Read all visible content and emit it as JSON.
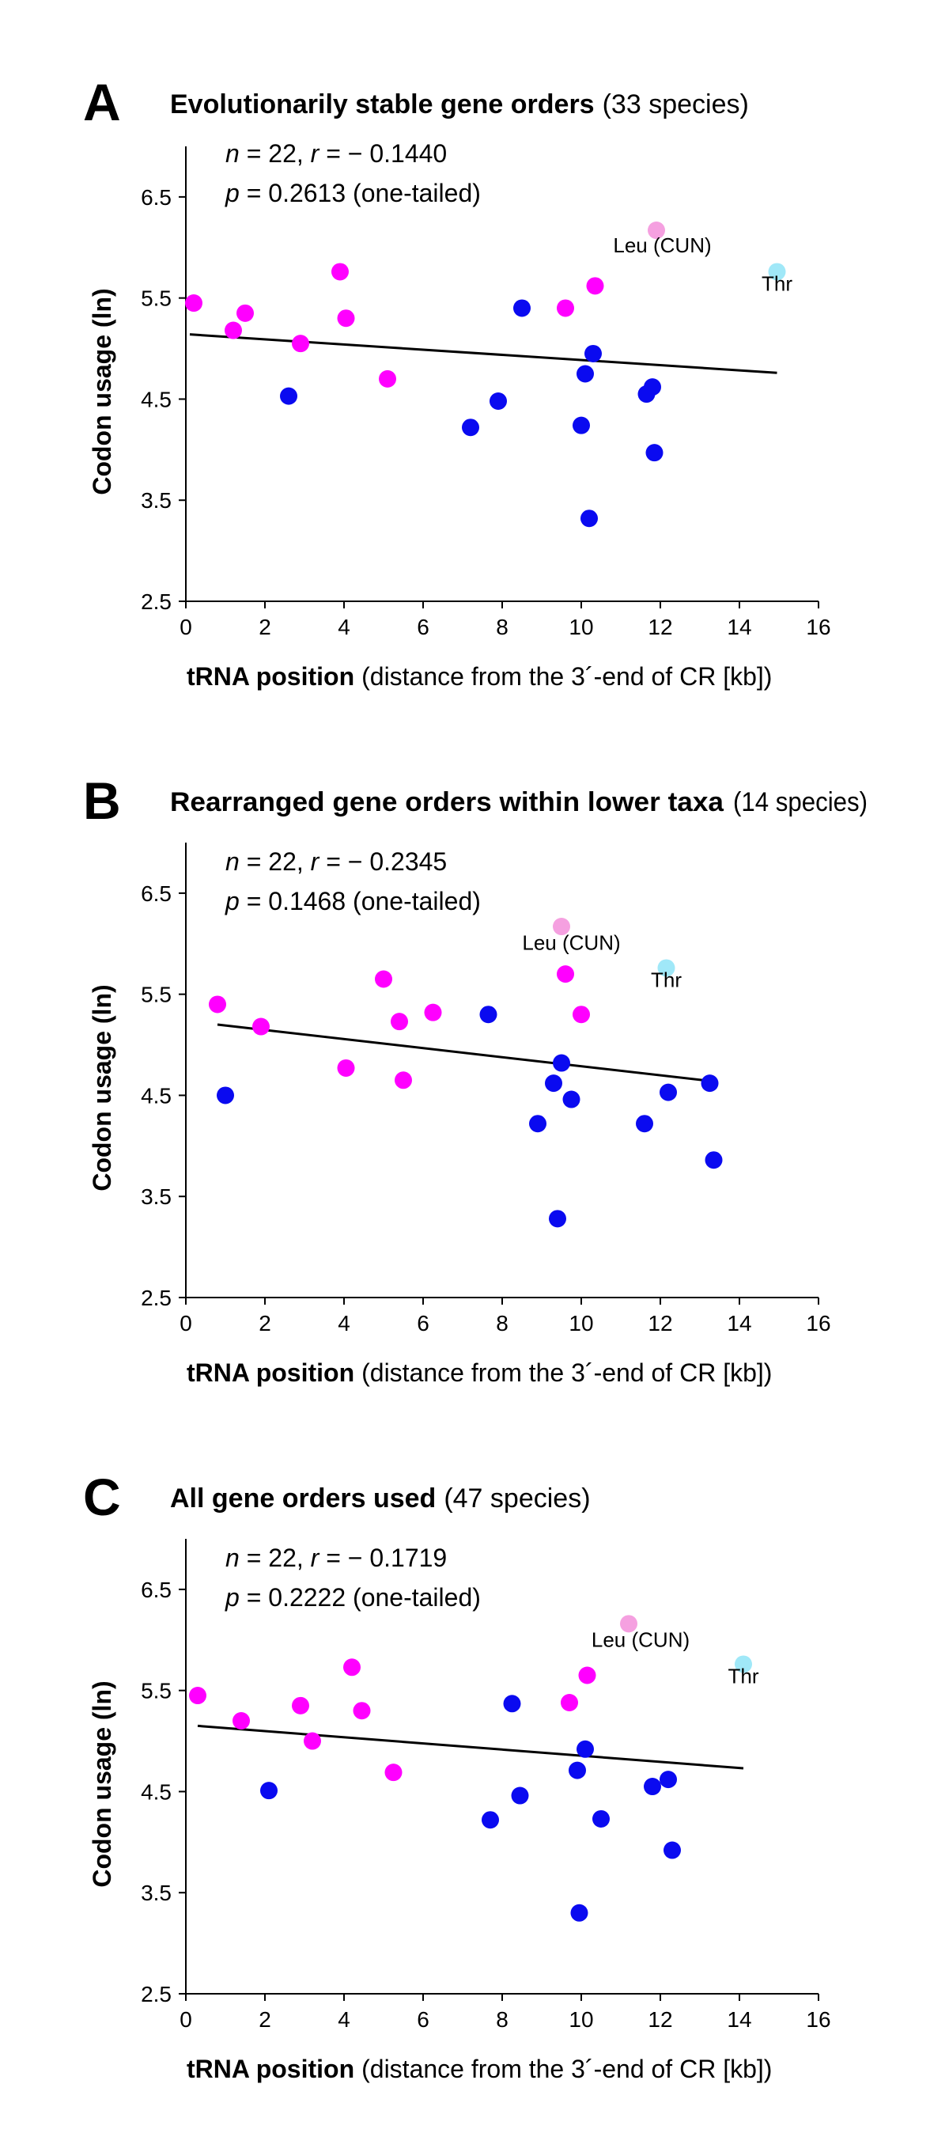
{
  "chart_data": [
    {
      "type": "scatter",
      "panel_label": "A",
      "title_bold": "Evolutionarily stable gene orders",
      "title_extra": "(33 species)",
      "stat_line1": {
        "n_label": "n",
        "n_value": " = 22, ",
        "r_label": "r",
        "r_value": " = − 0.1440"
      },
      "stat_line2": {
        "p_label": "p",
        "p_value": " = 0.2613 (one-tailed)"
      },
      "xlabel_bold": "tRNA position",
      "xlabel_extra": "(distance from the 3´-end of CR [kb])",
      "ylabel": "Codon usage (ln)",
      "xlim": [
        0,
        16
      ],
      "ylim": [
        2.5,
        7.0
      ],
      "xticks": [
        "0",
        "2",
        "4",
        "6",
        "8",
        "10",
        "12",
        "14",
        "16"
      ],
      "yticks": [
        "2.5",
        "3.5",
        "4.5",
        "5.5",
        "6.5"
      ],
      "colors": {
        "magenta": "#ff00ff",
        "blue": "#0a0af0",
        "pink": "#f5a0e0",
        "cyan": "#a0e8f8",
        "line": "#000000"
      },
      "series": [
        {
          "name": "magenta",
          "points": [
            [
              0.2,
              5.45
            ],
            [
              1.2,
              5.18
            ],
            [
              1.5,
              5.35
            ],
            [
              2.9,
              5.05
            ],
            [
              3.9,
              5.76
            ],
            [
              4.05,
              5.3
            ],
            [
              5.1,
              4.7
            ],
            [
              9.6,
              5.4
            ],
            [
              10.35,
              5.62
            ]
          ]
        },
        {
          "name": "blue",
          "points": [
            [
              2.6,
              4.53
            ],
            [
              7.2,
              4.22
            ],
            [
              7.9,
              4.48
            ],
            [
              8.5,
              5.4
            ],
            [
              10.0,
              4.24
            ],
            [
              10.1,
              4.75
            ],
            [
              10.2,
              3.32
            ],
            [
              10.3,
              4.95
            ],
            [
              11.65,
              4.55
            ],
            [
              11.8,
              4.62
            ],
            [
              11.85,
              3.97
            ]
          ]
        },
        {
          "name": "pink",
          "points": [
            [
              11.9,
              6.17
            ]
          ]
        },
        {
          "name": "cyan",
          "points": [
            [
              14.95,
              5.76
            ]
          ]
        }
      ],
      "trend_line": {
        "x": [
          0.1,
          14.95
        ],
        "y": [
          5.14,
          4.76
        ]
      },
      "annotations": [
        {
          "text": "Leu (CUN)",
          "x": 12.05,
          "y": 5.95
        },
        {
          "text": "Thr",
          "x": 14.95,
          "y": 5.57
        }
      ]
    },
    {
      "type": "scatter",
      "panel_label": "B",
      "title_bold": "Rearranged gene orders within lower taxa",
      "title_extra": "(14 species)",
      "stat_line1": {
        "n_label": "n",
        "n_value": " = 22, ",
        "r_label": "r",
        "r_value": " = − 0.2345"
      },
      "stat_line2": {
        "p_label": "p",
        "p_value": " = 0.1468 (one-tailed)"
      },
      "xlabel_bold": "tRNA position",
      "xlabel_extra": "(distance from the 3´-end of CR [kb])",
      "ylabel": "Codon usage (ln)",
      "xlim": [
        0,
        16
      ],
      "ylim": [
        2.5,
        7.0
      ],
      "xticks": [
        "0",
        "2",
        "4",
        "6",
        "8",
        "10",
        "12",
        "14",
        "16"
      ],
      "yticks": [
        "2.5",
        "3.5",
        "4.5",
        "5.5",
        "6.5"
      ],
      "colors": {
        "magenta": "#ff00ff",
        "blue": "#0a0af0",
        "pink": "#f5a0e0",
        "cyan": "#a0e8f8",
        "line": "#000000"
      },
      "series": [
        {
          "name": "magenta",
          "points": [
            [
              0.8,
              5.4
            ],
            [
              1.9,
              5.18
            ],
            [
              4.05,
              4.77
            ],
            [
              5.0,
              5.65
            ],
            [
              5.4,
              5.23
            ],
            [
              5.5,
              4.65
            ],
            [
              6.25,
              5.32
            ],
            [
              9.6,
              5.7
            ],
            [
              10.0,
              5.3
            ]
          ]
        },
        {
          "name": "blue",
          "points": [
            [
              1.0,
              4.5
            ],
            [
              7.65,
              5.3
            ],
            [
              8.9,
              4.22
            ],
            [
              9.3,
              4.62
            ],
            [
              9.4,
              3.28
            ],
            [
              9.5,
              4.82
            ],
            [
              9.75,
              4.46
            ],
            [
              11.6,
              4.22
            ],
            [
              12.2,
              4.53
            ],
            [
              13.25,
              4.62
            ],
            [
              13.35,
              3.86
            ]
          ]
        },
        {
          "name": "pink",
          "points": [
            [
              9.5,
              6.17
            ]
          ]
        },
        {
          "name": "cyan",
          "points": [
            [
              12.15,
              5.76
            ]
          ]
        }
      ],
      "trend_line": {
        "x": [
          0.8,
          13.3
        ],
        "y": [
          5.2,
          4.64
        ]
      },
      "annotations": [
        {
          "text": "Leu (CUN)",
          "x": 9.75,
          "y": 5.94
        },
        {
          "text": "Thr",
          "x": 12.15,
          "y": 5.57
        }
      ]
    },
    {
      "type": "scatter",
      "panel_label": "C",
      "title_bold": "All gene orders used",
      "title_extra": "(47 species)",
      "stat_line1": {
        "n_label": "n",
        "n_value": " = 22, ",
        "r_label": "r",
        "r_value": " = − 0.1719"
      },
      "stat_line2": {
        "p_label": "p",
        "p_value": " = 0.2222 (one-tailed)"
      },
      "xlabel_bold": "tRNA position",
      "xlabel_extra": "(distance from the 3´-end of CR [kb])",
      "ylabel": "Codon usage (ln)",
      "xlim": [
        0,
        16
      ],
      "ylim": [
        2.5,
        7.0
      ],
      "xticks": [
        "0",
        "2",
        "4",
        "6",
        "8",
        "10",
        "12",
        "14",
        "16"
      ],
      "yticks": [
        "2.5",
        "3.5",
        "4.5",
        "5.5",
        "6.5"
      ],
      "colors": {
        "magenta": "#ff00ff",
        "blue": "#0a0af0",
        "pink": "#f5a0e0",
        "cyan": "#a0e8f8",
        "line": "#000000"
      },
      "series": [
        {
          "name": "magenta",
          "points": [
            [
              0.3,
              5.45
            ],
            [
              1.4,
              5.2
            ],
            [
              2.9,
              5.35
            ],
            [
              3.2,
              5.0
            ],
            [
              4.2,
              5.73
            ],
            [
              4.45,
              5.3
            ],
            [
              5.25,
              4.69
            ],
            [
              9.7,
              5.38
            ],
            [
              10.15,
              5.65
            ]
          ]
        },
        {
          "name": "blue",
          "points": [
            [
              2.1,
              4.51
            ],
            [
              7.7,
              4.22
            ],
            [
              8.25,
              5.37
            ],
            [
              8.45,
              4.46
            ],
            [
              9.9,
              4.71
            ],
            [
              9.95,
              3.3
            ],
            [
              10.1,
              4.92
            ],
            [
              10.5,
              4.23
            ],
            [
              11.8,
              4.55
            ],
            [
              12.2,
              4.62
            ],
            [
              12.3,
              3.92
            ]
          ]
        },
        {
          "name": "pink",
          "points": [
            [
              11.2,
              6.16
            ]
          ]
        },
        {
          "name": "cyan",
          "points": [
            [
              14.1,
              5.76
            ]
          ]
        }
      ],
      "trend_line": {
        "x": [
          0.3,
          14.1
        ],
        "y": [
          5.15,
          4.73
        ]
      },
      "annotations": [
        {
          "text": "Leu (CUN)",
          "x": 11.5,
          "y": 5.93
        },
        {
          "text": "Thr",
          "x": 14.1,
          "y": 5.57
        }
      ]
    }
  ]
}
